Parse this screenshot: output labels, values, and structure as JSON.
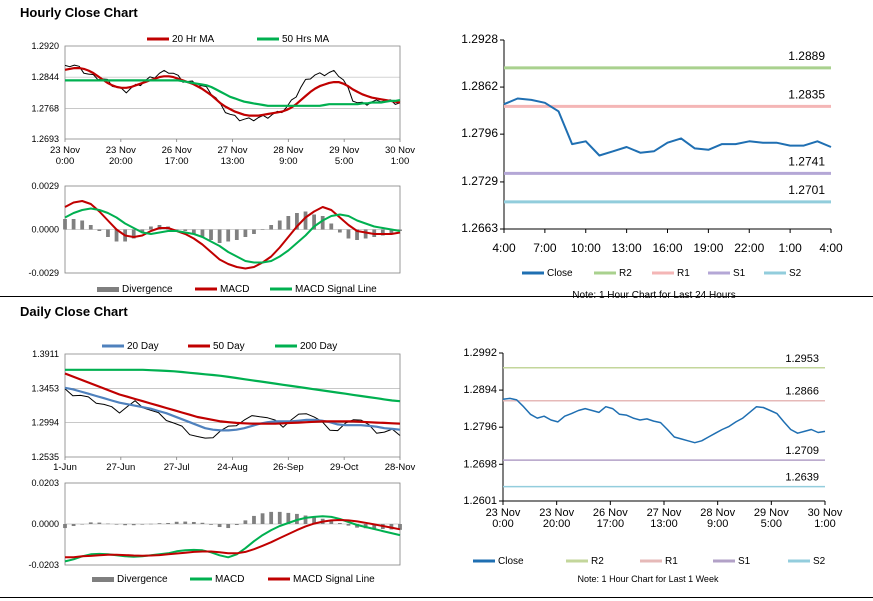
{
  "sections": {
    "hourly_title": "Hourly Close Chart",
    "daily_title": "Daily Close Chart"
  },
  "chart_data": [
    {
      "id": "hourly-price",
      "type": "line",
      "legend": [
        "20 Hr MA",
        "50 Hrs MA"
      ],
      "colors": {
        "price": "#000000",
        "ma20": "#c00000",
        "ma50": "#00b050"
      },
      "ylim": [
        1.2693,
        1.292
      ],
      "yticks": [
        "1.2920",
        "1.2844",
        "1.2768",
        "1.2693"
      ],
      "xticks": [
        "23 Nov\n0:00",
        "23 Nov\n20:00",
        "26 Nov\n17:00",
        "27 Nov\n13:00",
        "28 Nov\n9:00",
        "29 Nov\n5:00",
        "30 Nov\n1:00"
      ],
      "series": [
        {
          "name": "Close",
          "values": [
            1.2868,
            1.2874,
            1.2872,
            1.2866,
            1.2858,
            1.285,
            1.2846,
            1.2842,
            1.2838,
            1.2834,
            1.2826,
            1.2818,
            1.2812,
            1.281,
            1.2816,
            1.2822,
            1.2828,
            1.2834,
            1.284,
            1.2846,
            1.2852,
            1.2856,
            1.2858,
            1.2852,
            1.2844,
            1.2836,
            1.2832,
            1.283,
            1.2826,
            1.2822,
            1.2816,
            1.2806,
            1.2792,
            1.2774,
            1.2762,
            1.2752,
            1.2746,
            1.2742,
            1.274,
            1.274,
            1.2742,
            1.2744,
            1.2746,
            1.2748,
            1.2752,
            1.2756,
            1.2762,
            1.277,
            1.2784,
            1.28,
            1.2818,
            1.2834,
            1.2844,
            1.2848,
            1.285,
            1.2852,
            1.2854,
            1.2856,
            1.285,
            1.2836,
            1.2814,
            1.279,
            1.278,
            1.2778,
            1.278,
            1.2782,
            1.2784,
            1.2788,
            1.2786,
            1.2784,
            1.2782,
            1.278
          ]
        },
        {
          "name": "20 Hr MA",
          "values": [
            1.2862,
            1.2864,
            1.2866,
            1.2866,
            1.2864,
            1.286,
            1.2854,
            1.2846,
            1.2838,
            1.283,
            1.2824,
            1.282,
            1.2818,
            1.2818,
            1.282,
            1.2824,
            1.2828,
            1.2832,
            1.2836,
            1.284,
            1.2844,
            1.2846,
            1.2846,
            1.2844,
            1.284,
            1.2836,
            1.2832,
            1.2828,
            1.2822,
            1.2816,
            1.2808,
            1.28,
            1.279,
            1.278,
            1.2772,
            1.2766,
            1.276,
            1.2756,
            1.2752,
            1.275,
            1.275,
            1.275,
            1.2752,
            1.2754,
            1.2756,
            1.2758,
            1.276,
            1.2764,
            1.277,
            1.2778,
            1.2788,
            1.2798,
            1.2808,
            1.2816,
            1.2822,
            1.2826,
            1.283,
            1.2832,
            1.2832,
            1.2828,
            1.2822,
            1.2814,
            1.2808,
            1.2802,
            1.2798,
            1.2794,
            1.2792,
            1.279,
            1.2788,
            1.2786,
            1.2784,
            1.2782
          ]
        },
        {
          "name": "50 Hrs MA",
          "values": [
            1.2836,
            1.2836,
            1.2836,
            1.2836,
            1.2836,
            1.2836,
            1.2836,
            1.2836,
            1.2836,
            1.2836,
            1.2836,
            1.2836,
            1.2836,
            1.2836,
            1.2836,
            1.2836,
            1.2836,
            1.2836,
            1.2836,
            1.2836,
            1.2836,
            1.2836,
            1.2836,
            1.2836,
            1.2836,
            1.2834,
            1.2832,
            1.283,
            1.2828,
            1.2826,
            1.2824,
            1.282,
            1.2814,
            1.2808,
            1.2802,
            1.2796,
            1.2792,
            1.2788,
            1.2784,
            1.2782,
            1.278,
            1.2778,
            1.2776,
            1.2774,
            1.2774,
            1.2774,
            1.2774,
            1.2774,
            1.2774,
            1.2774,
            1.2774,
            1.2774,
            1.2774,
            1.2774,
            1.2774,
            1.2776,
            1.2778,
            1.2778,
            1.2778,
            1.2778,
            1.2778,
            1.2778,
            1.2778,
            1.278,
            1.278,
            1.2782,
            1.2782,
            1.2782,
            1.2784,
            1.2786,
            1.2786,
            1.2788
          ]
        }
      ]
    },
    {
      "id": "hourly-macd",
      "type": "line",
      "legend": [
        "Divergence",
        "MACD",
        "MACD Signal Line"
      ],
      "colors": {
        "divergence": "#808080",
        "macd": "#c00000",
        "signal": "#00b050"
      },
      "ylim": [
        -0.0029,
        0.0029
      ],
      "yticks": [
        "0.0029",
        "0.0000",
        "-0.0029"
      ],
      "series": [
        {
          "name": "MACD",
          "values": [
            0.0015,
            0.0018,
            0.0019,
            0.0017,
            0.0012,
            0.0006,
            0.0,
            -0.0004,
            -0.0005,
            -0.0004,
            -0.0001,
            0.0001,
            0.0001,
            -0.0001,
            -0.0003,
            -0.0006,
            -0.001,
            -0.0015,
            -0.002,
            -0.0023,
            -0.0025,
            -0.0026,
            -0.0025,
            -0.0022,
            -0.0018,
            -0.0012,
            -0.0005,
            0.0002,
            0.0008,
            0.0012,
            0.0015,
            0.0013,
            0.0008,
            0.0003,
            -0.0001,
            -0.0002,
            -0.0003,
            -0.0003,
            -0.0003,
            -0.0002
          ]
        },
        {
          "name": "MACD Signal Line",
          "values": [
            0.0008,
            0.0011,
            0.0013,
            0.0014,
            0.0013,
            0.0011,
            0.0008,
            0.0004,
            0.0001,
            -0.0002,
            -0.0003,
            -0.0002,
            -0.0001,
            -0.0001,
            -0.0002,
            -0.0003,
            -0.0005,
            -0.0008,
            -0.0011,
            -0.0015,
            -0.0018,
            -0.0021,
            -0.0022,
            -0.0022,
            -0.0021,
            -0.0018,
            -0.0014,
            -0.0009,
            -0.0004,
            0.0002,
            0.0006,
            0.0009,
            0.001,
            0.0009,
            0.0006,
            0.0004,
            0.0002,
            0.0001,
            0.0,
            -0.0001
          ]
        }
      ]
    },
    {
      "id": "hourly-24h",
      "type": "line",
      "ylim": [
        1.2663,
        1.2928
      ],
      "yticks": [
        "1.2928",
        "1.2862",
        "1.2796",
        "1.2729",
        "1.2663"
      ],
      "xticks": [
        "4:00",
        "7:00",
        "10:00",
        "13:00",
        "16:00",
        "19:00",
        "22:00",
        "1:00",
        "4:00"
      ],
      "levels": [
        {
          "name": "R2",
          "value": 1.2889,
          "label": "1.2889",
          "color": "#a9d18e"
        },
        {
          "name": "R1",
          "value": 1.2835,
          "label": "1.2835",
          "color": "#f4b6b6"
        },
        {
          "name": "S1",
          "value": 1.2741,
          "label": "1.2741",
          "color": "#b4a7d6"
        },
        {
          "name": "S2",
          "value": 1.2701,
          "label": "1.2701",
          "color": "#92cddc"
        }
      ],
      "legend": [
        "Close",
        "R2",
        "R1",
        "S1",
        "S2"
      ],
      "note": "Note: 1 Hour Chart for Last 24 Hours",
      "series": [
        {
          "name": "Close",
          "color": "#1f6fb2",
          "values": [
            1.2838,
            1.2846,
            1.2844,
            1.284,
            1.2828,
            1.2782,
            1.2786,
            1.2766,
            1.2772,
            1.2778,
            1.277,
            1.2772,
            1.2784,
            1.279,
            1.2776,
            1.2774,
            1.2782,
            1.2782,
            1.2786,
            1.2784,
            1.2784,
            1.278,
            1.278,
            1.2786,
            1.2778
          ]
        }
      ]
    },
    {
      "id": "daily-price",
      "type": "line",
      "legend": [
        "20 Day",
        "50 Day",
        "200 Day"
      ],
      "colors": {
        "price": "#000000",
        "ma20": "#4f81bd",
        "ma50": "#c00000",
        "ma200": "#00b050"
      },
      "ylim": [
        1.2535,
        1.3911
      ],
      "yticks": [
        "1.3911",
        "1.3453",
        "1.2994",
        "1.2535"
      ],
      "xticks": [
        "1-Jun",
        "27-Jun",
        "27-Jul",
        "24-Aug",
        "26-Sep",
        "29-Oct",
        "28-Nov"
      ],
      "series": [
        {
          "name": "Close",
          "values": [
            1.342,
            1.338,
            1.335,
            1.331,
            1.328,
            1.323,
            1.318,
            1.315,
            1.32,
            1.326,
            1.322,
            1.315,
            1.31,
            1.305,
            1.298,
            1.292,
            1.286,
            1.28,
            1.276,
            1.282,
            1.288,
            1.292,
            1.298,
            1.302,
            1.306,
            1.31,
            1.305,
            1.3,
            1.296,
            1.302,
            1.308,
            1.314,
            1.306,
            1.298,
            1.292,
            1.288,
            1.296,
            1.306,
            1.302,
            1.294,
            1.288,
            1.286,
            1.288,
            1.285
          ]
        },
        {
          "name": "20 Day",
          "values": [
            1.346,
            1.344,
            1.341,
            1.338,
            1.335,
            1.332,
            1.329,
            1.326,
            1.324,
            1.322,
            1.32,
            1.318,
            1.315,
            1.312,
            1.308,
            1.304,
            1.3,
            1.296,
            1.292,
            1.29,
            1.289,
            1.289,
            1.29,
            1.292,
            1.295,
            1.298,
            1.3,
            1.301,
            1.301,
            1.301,
            1.302,
            1.303,
            1.303,
            1.302,
            1.3,
            1.297,
            1.296,
            1.296,
            1.296,
            1.295,
            1.294,
            1.292,
            1.291,
            1.29
          ]
        },
        {
          "name": "50 Day",
          "values": [
            1.365,
            1.361,
            1.357,
            1.353,
            1.349,
            1.345,
            1.341,
            1.337,
            1.334,
            1.331,
            1.328,
            1.325,
            1.322,
            1.319,
            1.316,
            1.313,
            1.31,
            1.307,
            1.305,
            1.303,
            1.301,
            1.3,
            1.299,
            1.2985,
            1.298,
            1.298,
            1.298,
            1.298,
            1.2985,
            1.299,
            1.2995,
            1.3,
            1.3005,
            1.301,
            1.301,
            1.301,
            1.301,
            1.301,
            1.3005,
            1.3,
            1.2995,
            1.299,
            1.2985,
            1.298
          ]
        },
        {
          "name": "200 Day",
          "values": [
            1.37,
            1.37,
            1.37,
            1.37,
            1.37,
            1.37,
            1.37,
            1.37,
            1.37,
            1.37,
            1.37,
            1.3695,
            1.369,
            1.3685,
            1.368,
            1.367,
            1.366,
            1.365,
            1.364,
            1.363,
            1.362,
            1.3605,
            1.359,
            1.3575,
            1.356,
            1.3545,
            1.353,
            1.3515,
            1.35,
            1.3485,
            1.347,
            1.3455,
            1.344,
            1.3425,
            1.341,
            1.3395,
            1.338,
            1.3365,
            1.335,
            1.3335,
            1.332,
            1.3305,
            1.329,
            1.328
          ]
        }
      ]
    },
    {
      "id": "daily-macd",
      "type": "line",
      "legend": [
        "Divergence",
        "MACD",
        "MACD Signal Line"
      ],
      "colors": {
        "divergence": "#808080",
        "macd": "#00b050",
        "signal": "#c00000"
      },
      "ylim": [
        -0.0203,
        0.0203
      ],
      "yticks": [
        "0.0203",
        "0.0000",
        "-0.0203"
      ],
      "series": [
        {
          "name": "MACD",
          "values": [
            -0.0185,
            -0.0175,
            -0.016,
            -0.015,
            -0.0148,
            -0.015,
            -0.0155,
            -0.016,
            -0.0162,
            -0.016,
            -0.0155,
            -0.015,
            -0.0145,
            -0.0135,
            -0.013,
            -0.0128,
            -0.013,
            -0.014,
            -0.0155,
            -0.0165,
            -0.015,
            -0.012,
            -0.0085,
            -0.0055,
            -0.003,
            -0.001,
            0.0005,
            0.002,
            0.003,
            0.0035,
            0.0038,
            0.0035,
            0.0025,
            0.001,
            -0.0005,
            -0.0015,
            -0.0025,
            -0.0035,
            -0.0045,
            -0.0055
          ]
        },
        {
          "name": "MACD Signal Line",
          "values": [
            -0.0165,
            -0.0165,
            -0.016,
            -0.0158,
            -0.0155,
            -0.0152,
            -0.0152,
            -0.0154,
            -0.0156,
            -0.0157,
            -0.0156,
            -0.0154,
            -0.015,
            -0.0146,
            -0.0142,
            -0.0138,
            -0.0136,
            -0.0136,
            -0.014,
            -0.0145,
            -0.0145,
            -0.0138,
            -0.0125,
            -0.0108,
            -0.009,
            -0.007,
            -0.005,
            -0.003,
            -0.0012,
            0.0002,
            0.0012,
            0.0018,
            0.002,
            0.0018,
            0.0013,
            0.0006,
            -0.0002,
            -0.001,
            -0.0018,
            -0.0026
          ]
        }
      ]
    },
    {
      "id": "daily-week",
      "type": "line",
      "ylim": [
        1.2601,
        1.2992
      ],
      "yticks": [
        "1.2992",
        "1.2894",
        "1.2796",
        "1.2698",
        "1.2601"
      ],
      "xticks": [
        "23 Nov\n0:00",
        "23 Nov\n20:00",
        "26 Nov\n17:00",
        "27 Nov\n13:00",
        "28 Nov\n9:00",
        "29 Nov\n5:00",
        "30 Nov\n1:00"
      ],
      "levels": [
        {
          "name": "R2",
          "value": 1.2953,
          "label": "1.2953",
          "color": "#c3d69b"
        },
        {
          "name": "R1",
          "value": 1.2866,
          "label": "1.2866",
          "color": "#e6b9b8"
        },
        {
          "name": "S1",
          "value": 1.2709,
          "label": "1.2709",
          "color": "#b2a1c7"
        },
        {
          "name": "S2",
          "value": 1.2639,
          "label": "1.2639",
          "color": "#93cddd"
        }
      ],
      "legend": [
        "Close",
        "R2",
        "R1",
        "S1",
        "S2"
      ],
      "note": "Note: 1 Hour Chart for Last 1 Week",
      "series": [
        {
          "name": "Close",
          "color": "#1f6fb2",
          "values": [
            1.287,
            1.2872,
            1.2868,
            1.285,
            1.283,
            1.282,
            1.2825,
            1.2815,
            1.281,
            1.2825,
            1.2832,
            1.284,
            1.2845,
            1.284,
            1.2835,
            1.285,
            1.2845,
            1.283,
            1.2828,
            1.282,
            1.2815,
            1.2818,
            1.2812,
            1.2808,
            1.279,
            1.277,
            1.2765,
            1.276,
            1.2755,
            1.276,
            1.277,
            1.278,
            1.279,
            1.2798,
            1.281,
            1.282,
            1.2835,
            1.285,
            1.2848,
            1.284,
            1.2832,
            1.281,
            1.279,
            1.278,
            1.2785,
            1.279,
            1.2782,
            1.2785
          ]
        }
      ]
    }
  ]
}
